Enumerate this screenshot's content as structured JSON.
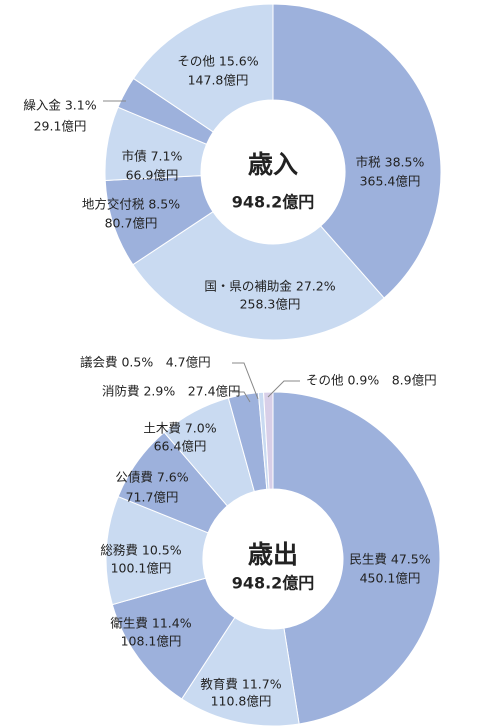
{
  "colors": {
    "dark": "#9db1dc",
    "light": "#c9daf1",
    "special": "#d8cfe8",
    "line": "#888888",
    "center": "#ffffff"
  },
  "chart_data": [
    {
      "type": "pie",
      "center_title": "歳入",
      "center_amount": "948.2億円",
      "slices": [
        {
          "name": "市税",
          "percent": 38.5,
          "percent_text": "38.5%",
          "amount": "365.4億円",
          "color": "dark"
        },
        {
          "name": "国・県の補助金",
          "percent": 27.2,
          "percent_text": "27.2%",
          "amount": "258.3億円",
          "color": "light"
        },
        {
          "name": "地方交付税",
          "percent": 8.5,
          "percent_text": "8.5%",
          "amount": "80.7億円",
          "color": "dark"
        },
        {
          "name": "市債",
          "percent": 7.1,
          "percent_text": "7.1%",
          "amount": "66.9億円",
          "color": "light"
        },
        {
          "name": "繰入金",
          "percent": 3.1,
          "percent_text": "3.1%",
          "amount": "29.1億円",
          "color": "dark"
        },
        {
          "name": "その他",
          "percent": 15.6,
          "percent_text": "15.6%",
          "amount": "147.8億円",
          "color": "light"
        }
      ]
    },
    {
      "type": "pie",
      "center_title": "歳出",
      "center_amount": "948.2億円",
      "slices": [
        {
          "name": "民生費",
          "percent": 47.5,
          "percent_text": "47.5%",
          "amount": "450.1億円",
          "color": "dark"
        },
        {
          "name": "教育費",
          "percent": 11.7,
          "percent_text": "11.7%",
          "amount": "110.8億円",
          "color": "light"
        },
        {
          "name": "衛生費",
          "percent": 11.4,
          "percent_text": "11.4%",
          "amount": "108.1億円",
          "color": "dark"
        },
        {
          "name": "総務費",
          "percent": 10.5,
          "percent_text": "10.5%",
          "amount": "100.1億円",
          "color": "light"
        },
        {
          "name": "公債費",
          "percent": 7.6,
          "percent_text": "7.6%",
          "amount": "71.7億円",
          "color": "dark"
        },
        {
          "name": "土木費",
          "percent": 7.0,
          "percent_text": "7.0%",
          "amount": "66.4億円",
          "color": "light"
        },
        {
          "name": "消防費",
          "percent": 2.9,
          "percent_text": "2.9%",
          "amount": "27.4億円",
          "color": "dark"
        },
        {
          "name": "議会費",
          "percent": 0.5,
          "percent_text": "0.5%",
          "amount": "4.7億円",
          "color": "light"
        },
        {
          "name": "その他",
          "percent": 0.9,
          "percent_text": "0.9%",
          "amount": "8.9億円",
          "color": "special"
        }
      ]
    }
  ]
}
